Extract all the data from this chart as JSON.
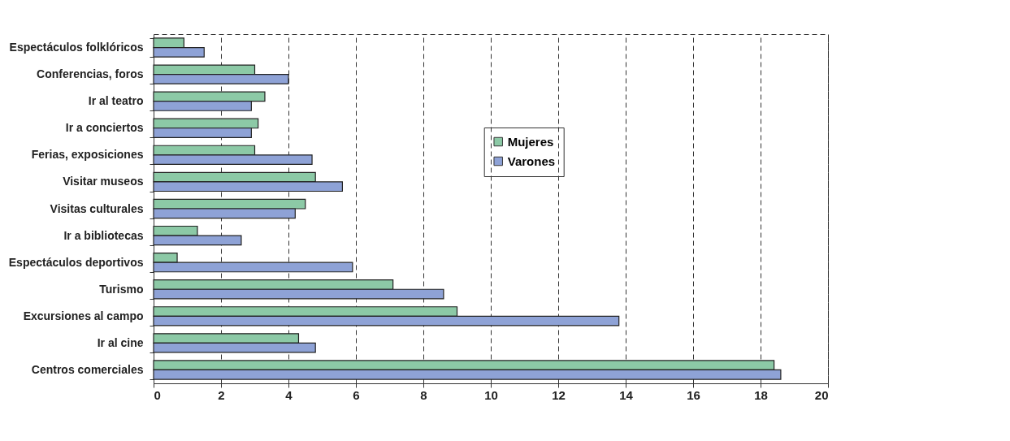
{
  "chart_data": {
    "type": "bar",
    "orientation": "horizontal",
    "categories": [
      "Espectáculos folklóricos",
      "Conferencias, foros",
      "Ir al teatro",
      "Ir a conciertos",
      "Ferias, exposiciones",
      "Visitar museos",
      "Visitas culturales",
      "Ir a bibliotecas",
      "Espectáculos deportivos",
      "Turismo",
      "Excursiones al campo",
      "Ir al cine",
      "Centros comerciales"
    ],
    "series": [
      {
        "name": "Mujeres",
        "color": "#8cc9a6",
        "values": [
          0.9,
          3.0,
          3.3,
          3.1,
          3.0,
          4.8,
          4.5,
          1.3,
          0.7,
          7.1,
          9.0,
          4.3,
          18.4
        ]
      },
      {
        "name": "Varones",
        "color": "#8ea2d6",
        "values": [
          1.5,
          4.0,
          2.9,
          2.9,
          4.7,
          5.6,
          4.2,
          2.6,
          5.9,
          8.6,
          13.8,
          4.8,
          18.6
        ]
      }
    ],
    "xlim": [
      0,
      20
    ],
    "xticks": [
      0,
      2,
      4,
      6,
      8,
      10,
      12,
      14,
      16,
      18,
      20
    ],
    "grid": "x",
    "legend": "top right"
  }
}
